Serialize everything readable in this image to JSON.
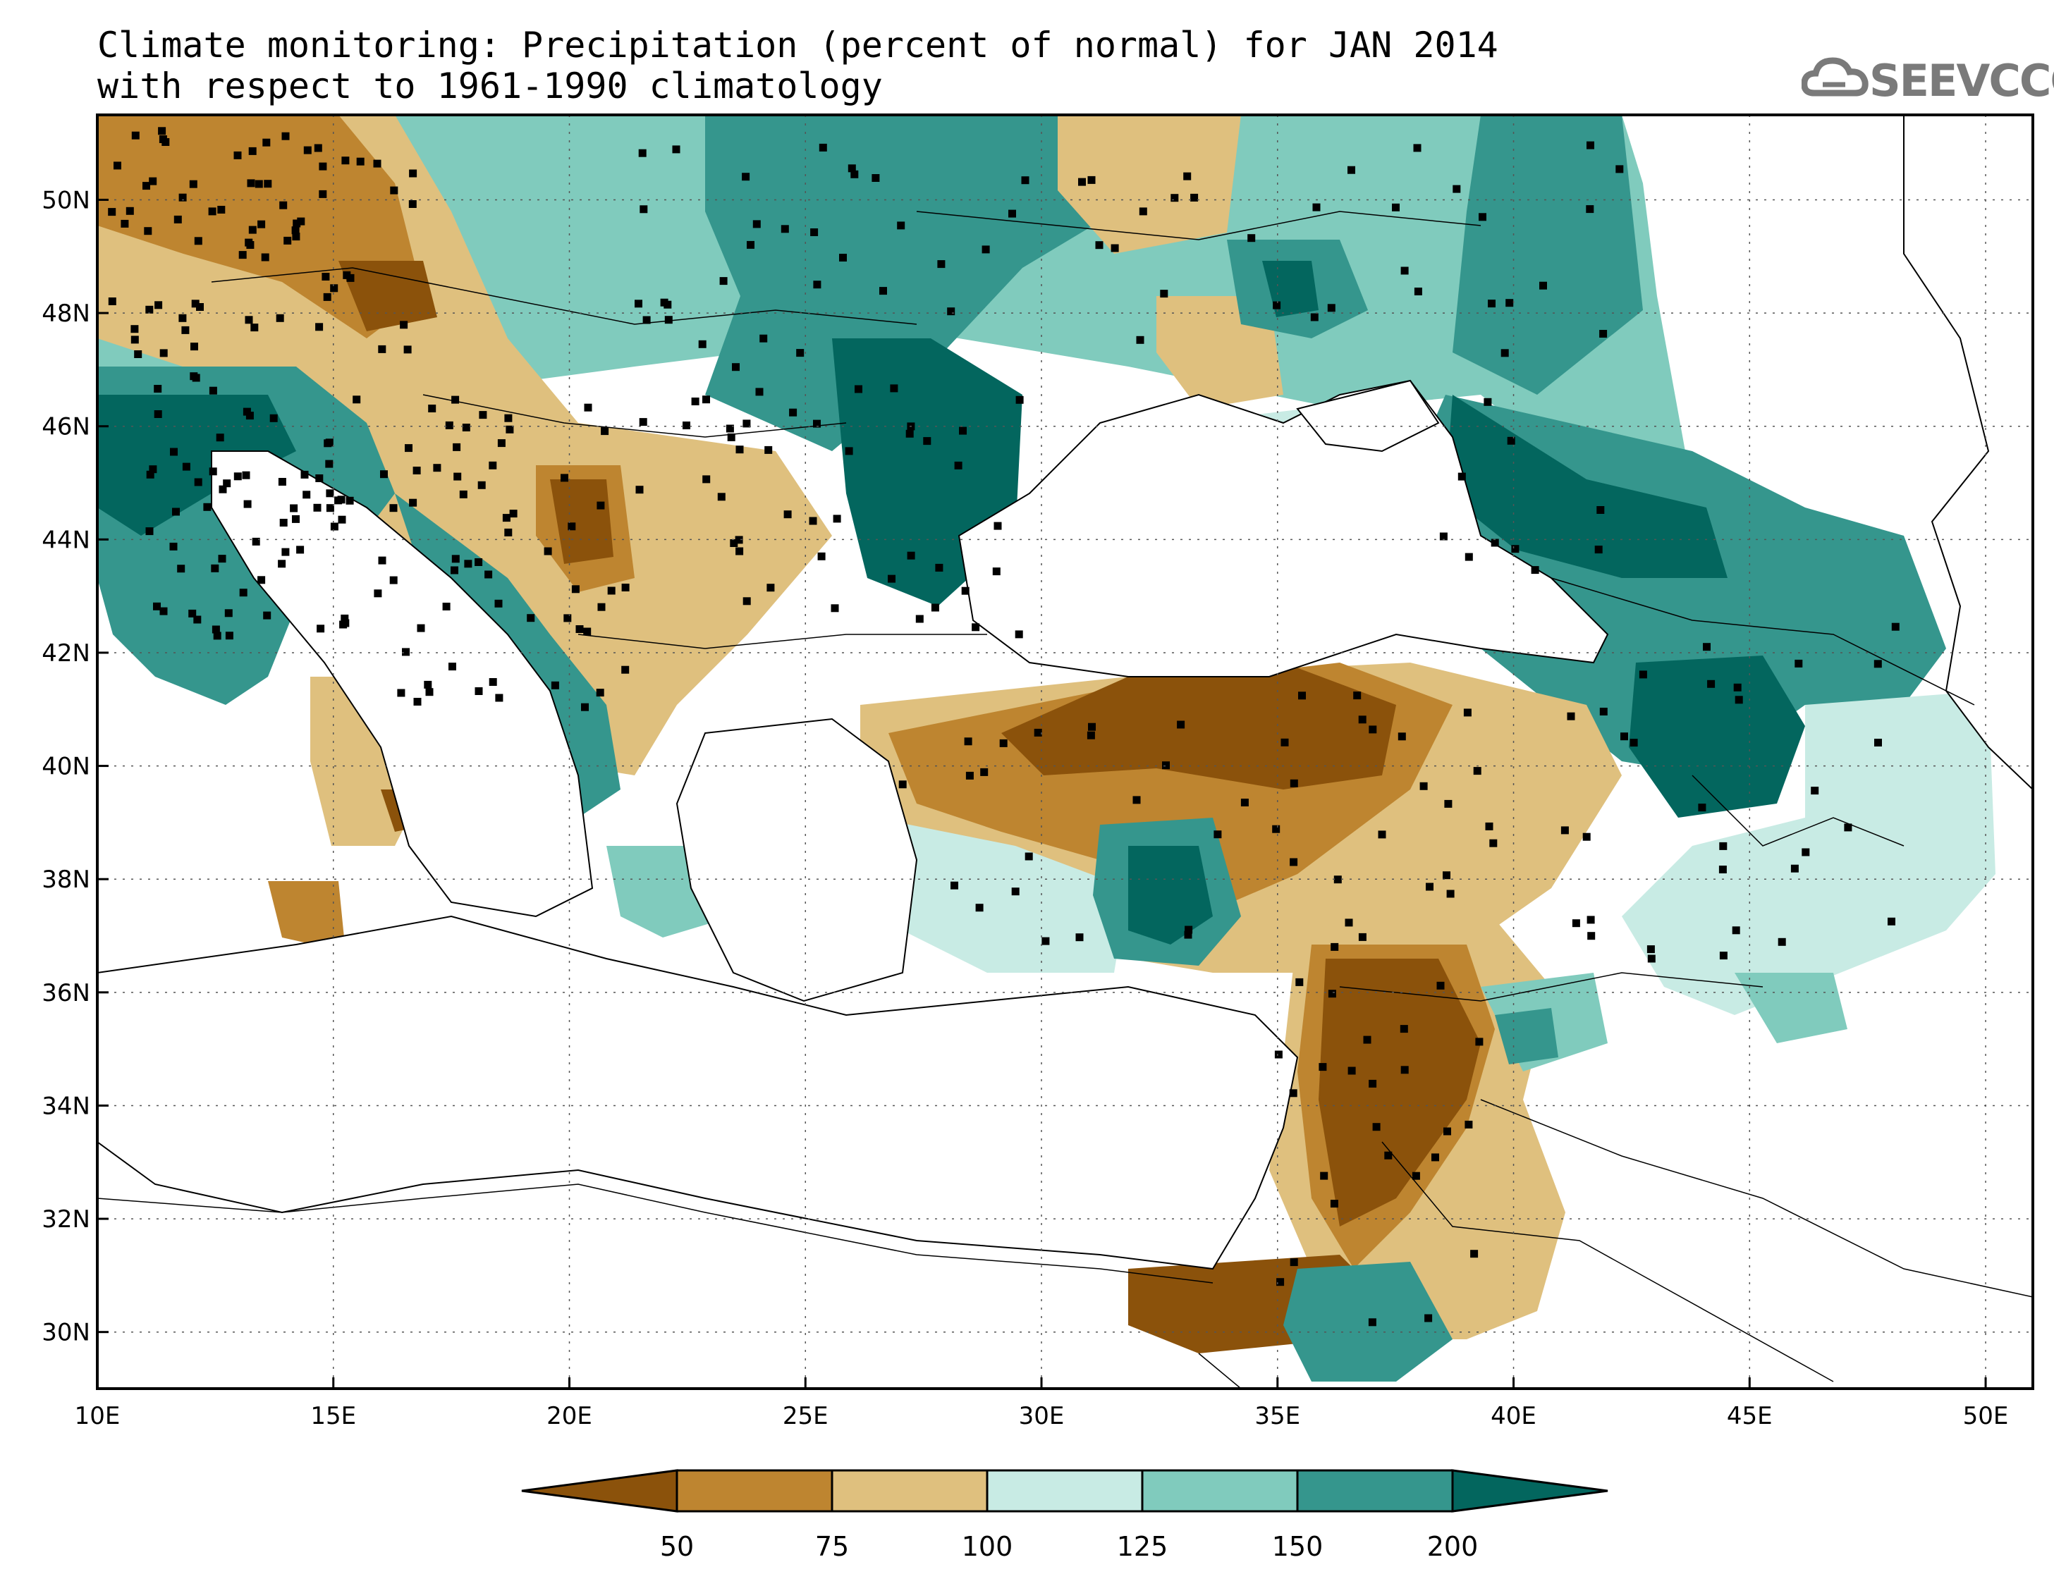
{
  "title": {
    "line1": "Climate monitoring: Precipitation (percent of normal) for JAN 2014",
    "line2": "with respect to 1961-1990 climatology"
  },
  "logo": {
    "text": "SEEVCCC"
  },
  "axes": {
    "lon_labels": [
      "10E",
      "15E",
      "20E",
      "25E",
      "30E",
      "35E",
      "40E",
      "45E",
      "50E"
    ],
    "lat_labels": [
      "50N",
      "48N",
      "46N",
      "44N",
      "42N",
      "40N",
      "38N",
      "36N",
      "34N",
      "32N",
      "30N"
    ],
    "lon_range": [
      10,
      51
    ],
    "lat_range": [
      29,
      51.5
    ]
  },
  "colorbar": {
    "levels": [
      "50",
      "75",
      "100",
      "125",
      "150",
      "200"
    ],
    "colors": [
      "#8b520b",
      "#be8530",
      "#dfc07e",
      "#c8ebe4",
      "#80cbbd",
      "#35968d",
      "#03665e"
    ]
  }
}
